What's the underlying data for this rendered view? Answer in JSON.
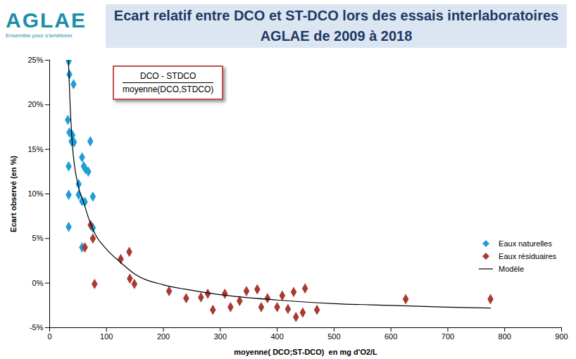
{
  "chart_data": {
    "type": "scatter",
    "logo_text": "AGLAE",
    "logo_subtitle": "Ensemble pour s'améliorer",
    "title": "Ecart relatif entre DCO et ST-DCO lors des essais interlaboratoires\nAGLAE de 2009 à 2018",
    "x_label": "moyenne( DCO;ST-DCO)  en mg d'O2/L",
    "y_label": "Ecart observé (en %)",
    "annotation": {
      "numerator": "DCO - STDCO",
      "denominator": "moyenne(DCO,STDCO)"
    },
    "xlim": [
      0,
      900
    ],
    "xticks": [
      0,
      100,
      200,
      300,
      400,
      500,
      600,
      700,
      800,
      900
    ],
    "ylim": [
      -5,
      25
    ],
    "yticks": [
      {
        "value": -5,
        "label": "-5%"
      },
      {
        "value": 0,
        "label": "0%"
      },
      {
        "value": 5,
        "label": "5%"
      },
      {
        "value": 10,
        "label": "10%"
      },
      {
        "value": 15,
        "label": "15%"
      },
      {
        "value": 20,
        "label": "20%"
      },
      {
        "value": 25,
        "label": "25%"
      }
    ],
    "grid": false,
    "legend": "right",
    "series": [
      {
        "name": "Eaux naturelles",
        "type": "scatter",
        "marker": "diamond",
        "color": "#1f9ed8",
        "x": [
          33.5,
          34.7,
          42,
          32,
          34.7,
          40,
          38.5,
          43,
          71.5,
          57,
          60,
          33.5,
          63,
          68,
          51,
          33.5,
          51,
          76,
          57,
          62,
          33.5,
          76,
          57
        ],
        "values": [
          24.9,
          23.4,
          22.3,
          18.3,
          16.9,
          16.6,
          15.9,
          15.8,
          15.9,
          14.1,
          13.1,
          13.1,
          12.8,
          12.5,
          11.1,
          9.9,
          9.9,
          9.7,
          9.2,
          9.1,
          6.3,
          6.2,
          4.0
        ]
      },
      {
        "name": "Eaux résiduaires",
        "type": "scatter",
        "marker": "diamond",
        "color": "#a93a32",
        "x": [
          72,
          76,
          62,
          79,
          125,
          140,
          141,
          149,
          210,
          240,
          266,
          278,
          287,
          308,
          318,
          334,
          346,
          365,
          372,
          383,
          400,
          409,
          419,
          433,
          429,
          445,
          449,
          470,
          626,
          775
        ],
        "values": [
          6.5,
          5.0,
          4.0,
          -0.1,
          2.7,
          3.5,
          0.5,
          -0.1,
          -0.9,
          -1.7,
          -1.6,
          -1.2,
          -3.0,
          -1.2,
          -2.7,
          -2.0,
          -0.9,
          -0.7,
          -2.7,
          -1.7,
          -2.7,
          -1.4,
          -2.9,
          -3.8,
          -1.0,
          -3.3,
          -0.6,
          -3.0,
          -1.8,
          -1.8
        ]
      },
      {
        "name": "Modèle",
        "type": "line",
        "line_style": "solid",
        "color": "#000000",
        "x": [
          33,
          36,
          40,
          50,
          60,
          70,
          80,
          100,
          125,
          150,
          200,
          250,
          300,
          400,
          500,
          600,
          700,
          775
        ],
        "values": [
          25,
          20,
          15.5,
          11,
          9,
          7,
          5.5,
          3.8,
          2.3,
          1,
          -0.2,
          -0.8,
          -1.3,
          -1.9,
          -2.3,
          -2.5,
          -2.7,
          -2.8
        ]
      }
    ]
  }
}
